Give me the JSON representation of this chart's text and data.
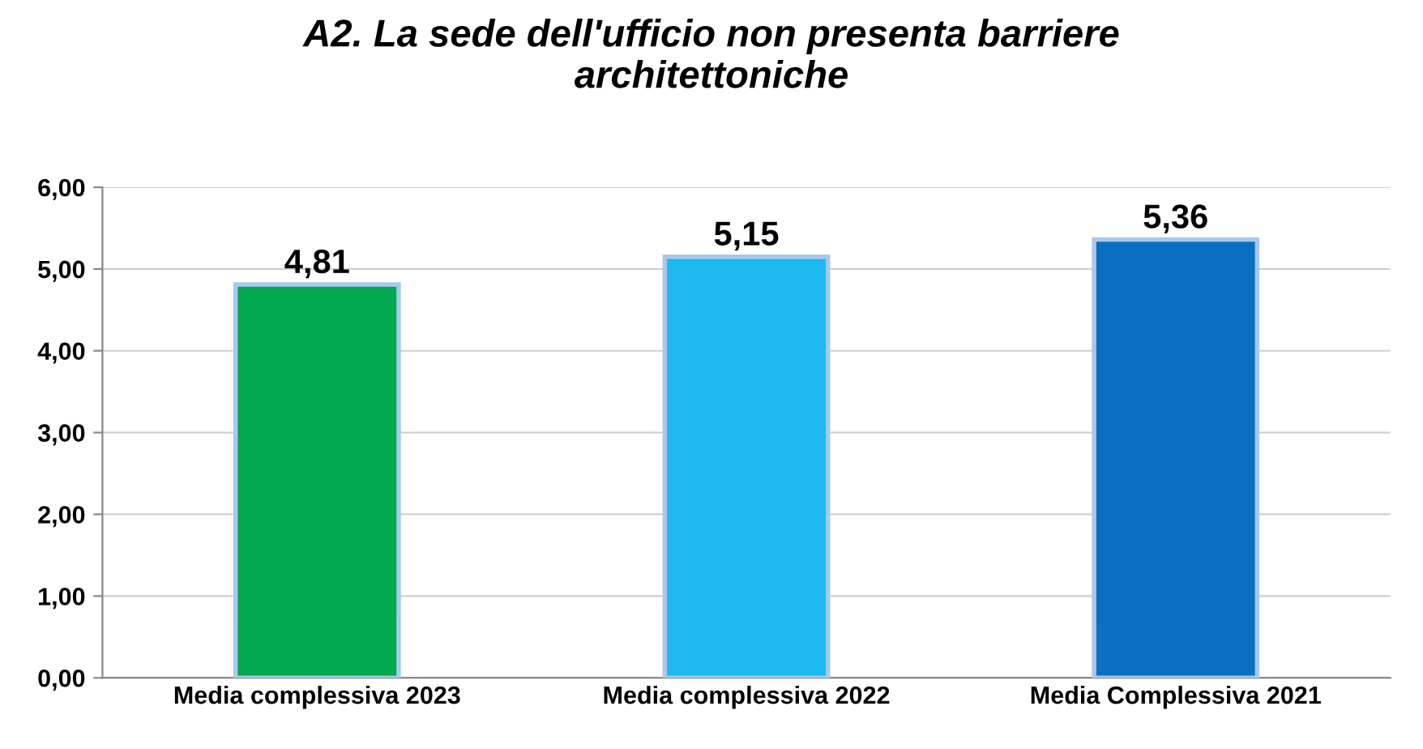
{
  "chart_data": {
    "type": "bar",
    "title": "A2. La sede dell'ufficio non presenta barriere\narchitettoniche",
    "categories": [
      "Media complessiva 2023",
      "Media complessiva 2022",
      "Media Complessiva 2021"
    ],
    "values": [
      4.81,
      5.15,
      5.36
    ],
    "colors": [
      "#00a84f",
      "#1cb8ef",
      "#0a6fc2"
    ],
    "value_labels": [
      "4,81",
      "5,15",
      "5,36"
    ],
    "ylim": [
      0,
      6
    ],
    "yticks": [
      {
        "value": 0,
        "label": "0,00"
      },
      {
        "value": 1,
        "label": "1,00"
      },
      {
        "value": 2,
        "label": "2,00"
      },
      {
        "value": 3,
        "label": "3,00"
      },
      {
        "value": 4,
        "label": "4,00"
      },
      {
        "value": 5,
        "label": "5,00"
      },
      {
        "value": 6,
        "label": "6,00"
      }
    ],
    "grid": "y",
    "legend": false
  }
}
